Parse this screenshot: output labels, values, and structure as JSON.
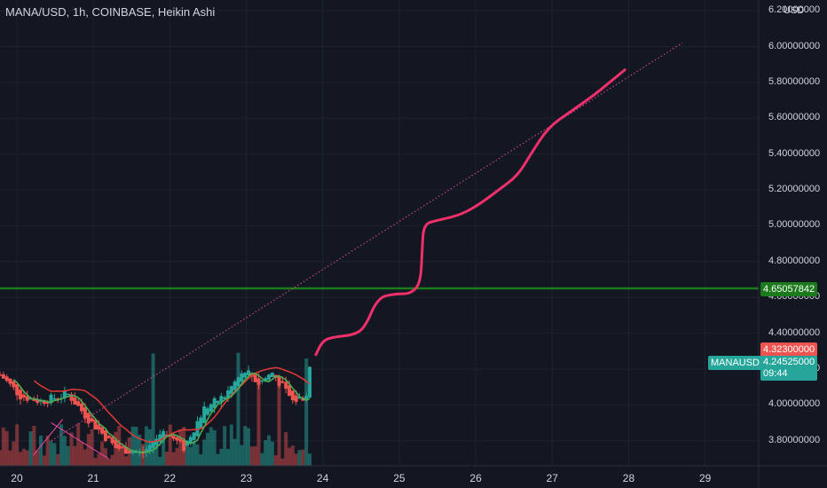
{
  "header": {
    "title": "MANA/USD, 1h, COINBASE, Heikin Ashi",
    "currency": "USD"
  },
  "colors": {
    "bg": "#131722",
    "grid": "#1e2230",
    "up": "#26a69a",
    "down": "#ef5350",
    "level": "#1b7a1b",
    "projection": "#f0306a",
    "trend": "#e84aa0",
    "ma_red": "#e53935",
    "ma_green": "#4caf50"
  },
  "tags": {
    "level": {
      "value": "4.65057842"
    },
    "last_close": {
      "value": "4.32300000"
    },
    "symbol": {
      "label": "MANAUSD",
      "value": "4.24525000",
      "countdown": "09:44"
    }
  },
  "chart_data": {
    "type": "candlestick",
    "title": "MANA/USD, 1h, COINBASE, Heikin Ashi",
    "x_ticks": [
      "20",
      "21",
      "22",
      "23",
      "24",
      "25",
      "26",
      "27",
      "28",
      "29"
    ],
    "y_ticks": [
      "6.20000000",
      "6.00000000",
      "5.80000000",
      "5.60000000",
      "5.40000000",
      "5.20000000",
      "5.00000000",
      "4.80000000",
      "4.60000000",
      "4.40000000",
      "4.20000000",
      "4.00000000",
      "3.80000000"
    ],
    "ylim": [
      3.66,
      6.26
    ],
    "xlim": [
      19.78,
      29.7
    ],
    "horizontal_level": 4.65057842,
    "last_close": 4.323,
    "current_price": 4.24525,
    "trendline": {
      "start": [
        20.45,
        3.8
      ],
      "end": [
        28.7,
        6.02
      ]
    },
    "projection_path": [
      [
        23.91,
        4.28
      ],
      [
        24.0,
        4.36
      ],
      [
        24.15,
        4.38
      ],
      [
        24.4,
        4.39
      ],
      [
        24.55,
        4.43
      ],
      [
        24.72,
        4.6
      ],
      [
        24.95,
        4.62
      ],
      [
        25.15,
        4.62
      ],
      [
        25.28,
        4.68
      ],
      [
        25.3,
        4.87
      ],
      [
        25.32,
        5.01
      ],
      [
        25.5,
        5.03
      ],
      [
        25.8,
        5.06
      ],
      [
        26.05,
        5.12
      ],
      [
        26.3,
        5.2
      ],
      [
        26.55,
        5.28
      ],
      [
        26.72,
        5.4
      ],
      [
        26.95,
        5.55
      ],
      [
        27.25,
        5.64
      ],
      [
        27.55,
        5.73
      ],
      [
        27.75,
        5.8
      ],
      [
        27.95,
        5.87
      ]
    ],
    "grid": true
  }
}
